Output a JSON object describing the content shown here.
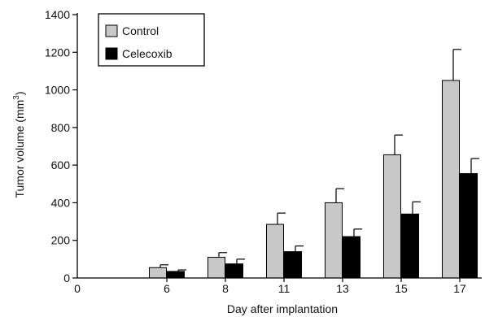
{
  "chart_data": {
    "type": "bar",
    "title": "",
    "xlabel": "Day after implantation",
    "ylabel": "Tumor volume (mm",
    "ylabel_sup": "3",
    "ylabel_close": ")",
    "x_origin_label": "0",
    "categories": [
      "6",
      "8",
      "11",
      "13",
      "15",
      "17"
    ],
    "series": [
      {
        "name": "Control",
        "color": "#c8c8c8",
        "values": [
          55,
          110,
          285,
          400,
          655,
          1050
        ],
        "errors": [
          15,
          25,
          60,
          75,
          105,
          165
        ]
      },
      {
        "name": "Celecoxib",
        "color": "#000000",
        "values": [
          35,
          75,
          140,
          220,
          340,
          555
        ],
        "errors": [
          8,
          25,
          30,
          40,
          65,
          80
        ]
      }
    ],
    "ylim": [
      0,
      1400
    ],
    "yticks": [
      0,
      200,
      400,
      600,
      800,
      1000,
      1200,
      1400
    ],
    "legend": {
      "placement": "top-left",
      "labels": [
        "Control",
        "Celecoxib"
      ]
    },
    "grid": false
  }
}
